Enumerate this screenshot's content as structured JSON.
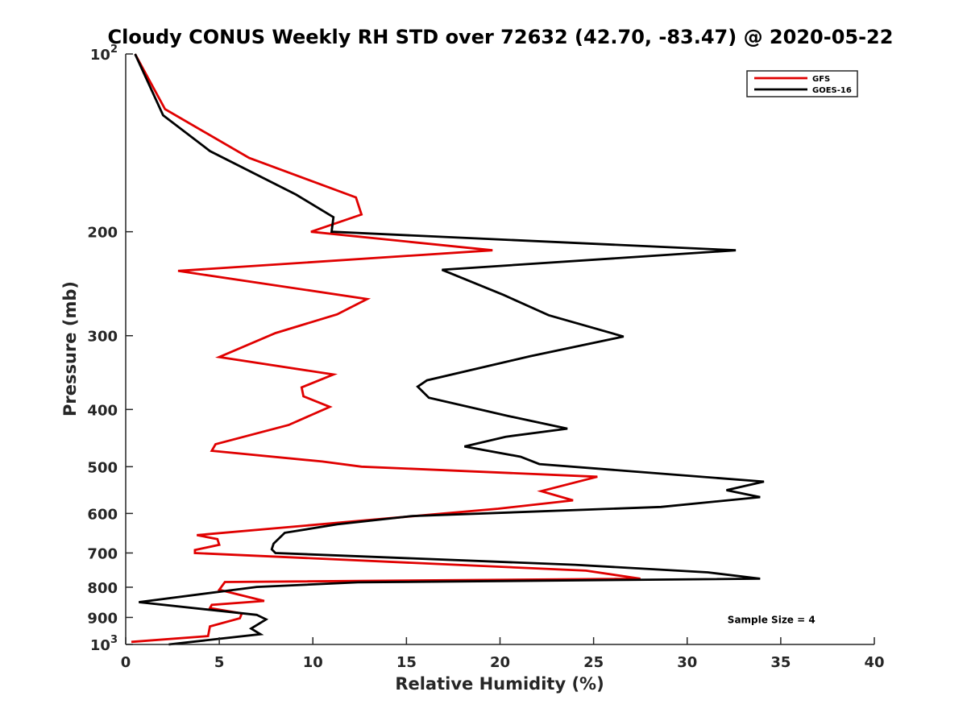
{
  "chart_data": {
    "type": "line",
    "title": "Cloudy CONUS Weekly RH STD over 72632 (42.70, -83.47) @ 2020-05-22",
    "xlabel": "Relative Humidity (%)",
    "ylabel": "Pressure (mb)",
    "xlim": [
      0,
      40
    ],
    "ylim": [
      100,
      1000
    ],
    "y_scale": "log",
    "y_direction": "reversed",
    "grid": false,
    "legend_position": "top-right",
    "x_ticks": [
      "0",
      "5",
      "10",
      "15",
      "20",
      "25",
      "30",
      "35",
      "40"
    ],
    "y_ticks": [
      {
        "value": 100,
        "base": "10",
        "exp": "2"
      },
      {
        "value": 200,
        "label": "200"
      },
      {
        "value": 300,
        "label": "300"
      },
      {
        "value": 400,
        "label": "400"
      },
      {
        "value": 500,
        "label": "500"
      },
      {
        "value": 600,
        "label": "600"
      },
      {
        "value": 700,
        "label": "700"
      },
      {
        "value": 800,
        "label": "800"
      },
      {
        "value": 900,
        "label": "900"
      },
      {
        "value": 1000,
        "base": "10",
        "exp": "3"
      }
    ],
    "series": [
      {
        "name": "GFS",
        "color": "#e00000",
        "points": [
          [
            0.5,
            100
          ],
          [
            2.1,
            124
          ],
          [
            6.6,
            150
          ],
          [
            12.3,
            175
          ],
          [
            12.6,
            187
          ],
          [
            9.9,
            200
          ],
          [
            19.6,
            215
          ],
          [
            2.8,
            233
          ],
          [
            12.9,
            260
          ],
          [
            11.3,
            276
          ],
          [
            8.0,
            297
          ],
          [
            5.0,
            326
          ],
          [
            11.1,
            349
          ],
          [
            9.4,
            367
          ],
          [
            9.5,
            380
          ],
          [
            10.9,
            396
          ],
          [
            8.7,
            425
          ],
          [
            4.8,
            458
          ],
          [
            4.6,
            470
          ],
          [
            10.5,
            490
          ],
          [
            12.6,
            500
          ],
          [
            25.2,
            520
          ],
          [
            22.2,
            550
          ],
          [
            23.9,
            570
          ],
          [
            19.9,
            589
          ],
          [
            3.8,
            653
          ],
          [
            4.9,
            663
          ],
          [
            5.0,
            678
          ],
          [
            3.7,
            692
          ],
          [
            3.7,
            700
          ],
          [
            24.6,
            750
          ],
          [
            27.5,
            774
          ],
          [
            5.3,
            784
          ],
          [
            5.0,
            808
          ],
          [
            7.4,
            844
          ],
          [
            4.6,
            857
          ],
          [
            4.5,
            868
          ],
          [
            6.2,
            886
          ],
          [
            6.1,
            903
          ],
          [
            4.5,
            932
          ],
          [
            4.4,
            968
          ],
          [
            0.3,
            990
          ]
        ]
      },
      {
        "name": "GOES-16",
        "color": "#000000",
        "points": [
          [
            0.5,
            100
          ],
          [
            2.0,
            127
          ],
          [
            4.5,
            146
          ],
          [
            9.1,
            173
          ],
          [
            11.1,
            189
          ],
          [
            11.0,
            200
          ],
          [
            32.6,
            215
          ],
          [
            16.9,
            232
          ],
          [
            20.2,
            256
          ],
          [
            22.6,
            277
          ],
          [
            26.6,
            301
          ],
          [
            21.6,
            325
          ],
          [
            16.1,
            357
          ],
          [
            15.6,
            366
          ],
          [
            16.2,
            382
          ],
          [
            20.4,
            410
          ],
          [
            23.6,
            431
          ],
          [
            20.3,
            445
          ],
          [
            18.1,
            462
          ],
          [
            21.1,
            481
          ],
          [
            22.1,
            495
          ],
          [
            34.1,
            530
          ],
          [
            32.1,
            548
          ],
          [
            33.9,
            563
          ],
          [
            28.6,
            585
          ],
          [
            15.3,
            606
          ],
          [
            11.3,
            626
          ],
          [
            8.5,
            647
          ],
          [
            7.9,
            675
          ],
          [
            7.8,
            690
          ],
          [
            8.0,
            700
          ],
          [
            24.0,
            733
          ],
          [
            31.1,
            755
          ],
          [
            33.9,
            774
          ],
          [
            12.4,
            785
          ],
          [
            7.0,
            799
          ],
          [
            0.7,
            848
          ],
          [
            7.0,
            891
          ],
          [
            7.5,
            907
          ],
          [
            6.7,
            940
          ],
          [
            7.2,
            961
          ],
          [
            2.3,
            1000
          ]
        ]
      }
    ],
    "annotations": [
      {
        "text": "Sample Size = 4",
        "x": 34.5,
        "y": 920
      }
    ]
  }
}
